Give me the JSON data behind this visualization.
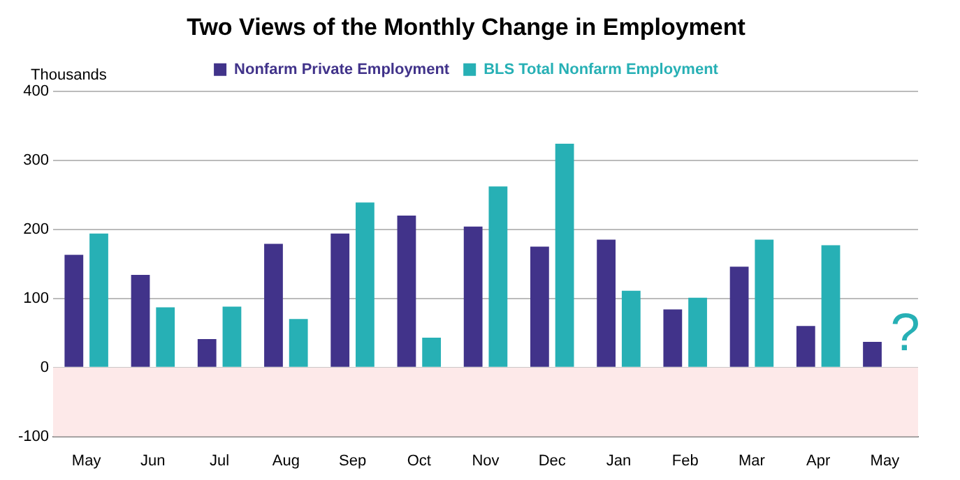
{
  "chart_data": {
    "type": "bar",
    "title": "Two Views of the Monthly Change in Employment",
    "ylabel": "Thousands",
    "categories": [
      "May",
      "Jun",
      "Jul",
      "Aug",
      "Sep",
      "Oct",
      "Nov",
      "Dec",
      "Jan",
      "Feb",
      "Mar",
      "Apr",
      "May"
    ],
    "series": [
      {
        "name": "Nonfarm Private Employment",
        "color": "#41338a",
        "values": [
          163,
          134,
          41,
          179,
          194,
          220,
          204,
          175,
          185,
          84,
          146,
          60,
          37
        ]
      },
      {
        "name": "BLS Total Nonfarm Employment",
        "color": "#27b0b5",
        "values": [
          194,
          87,
          88,
          70,
          239,
          43,
          262,
          324,
          111,
          101,
          185,
          177,
          null
        ]
      }
    ],
    "ylim": [
      -100,
      400
    ],
    "yticks": [
      -100,
      0,
      100,
      200,
      300,
      400
    ],
    "grid": "y",
    "legend": "top",
    "bands": [
      {
        "axis": "y",
        "from": -100,
        "to": 0,
        "color": "#fde9e9"
      }
    ],
    "annotations": [
      "?"
    ]
  }
}
